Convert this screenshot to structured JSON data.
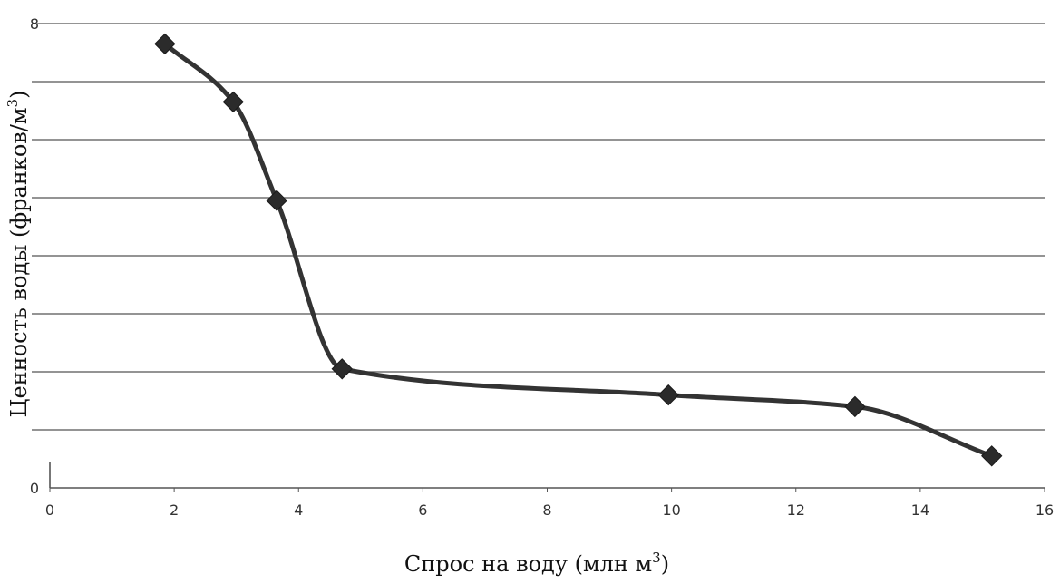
{
  "chart_data": {
    "type": "line",
    "title": "",
    "xlabel": {
      "text": "Спрос на воду (млн м",
      "sup": "3",
      "after": ")"
    },
    "ylabel": {
      "text": "Ценность воды (франков/м",
      "sup": "3",
      "after": ")"
    },
    "xlim": [
      0,
      16
    ],
    "ylim": [
      0,
      8
    ],
    "x_ticks": [
      "0",
      "2",
      "4",
      "6",
      "8",
      "10",
      "12",
      "14",
      "16"
    ],
    "y_ticks": [
      "0",
      "8"
    ],
    "grid": "horizontal",
    "legend": "none",
    "colors": {
      "line": "#333333",
      "marker": "#2b2b2b",
      "grid": "#555555",
      "text": "#111111"
    },
    "series": [
      {
        "marker": "diamond",
        "x": [
          1.85,
          2.95,
          3.65,
          4.7,
          9.95,
          12.95,
          15.15
        ],
        "y": [
          7.65,
          6.65,
          4.95,
          2.05,
          1.6,
          1.4,
          0.55
        ]
      }
    ]
  }
}
